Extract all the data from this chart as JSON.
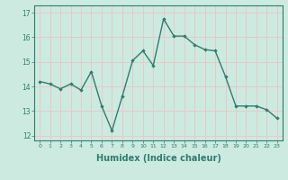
{
  "x": [
    0,
    1,
    2,
    3,
    4,
    5,
    6,
    7,
    8,
    9,
    10,
    11,
    12,
    13,
    14,
    15,
    16,
    17,
    18,
    19,
    20,
    21,
    22,
    23
  ],
  "y": [
    14.2,
    14.1,
    13.9,
    14.1,
    13.85,
    14.6,
    13.2,
    12.2,
    13.6,
    15.05,
    15.45,
    14.85,
    16.75,
    16.05,
    16.05,
    15.7,
    15.5,
    15.45,
    14.4,
    13.2,
    13.2,
    13.2,
    13.05,
    12.7
  ],
  "line_color": "#2e7d6e",
  "marker": "D",
  "marker_size": 1.8,
  "line_width": 1.0,
  "xlabel": "Humidex (Indice chaleur)",
  "xlabel_fontsize": 7,
  "xlim": [
    -0.5,
    23.5
  ],
  "ylim": [
    11.8,
    17.3
  ],
  "yticks": [
    12,
    13,
    14,
    15,
    16,
    17
  ],
  "ytick_labels": [
    "12",
    "13",
    "14",
    "15",
    "16",
    "17"
  ],
  "xticks": [
    0,
    1,
    2,
    3,
    4,
    5,
    6,
    7,
    8,
    9,
    10,
    11,
    12,
    13,
    14,
    15,
    16,
    17,
    18,
    19,
    20,
    21,
    22,
    23
  ],
  "background_color": "#cceae0",
  "grid_color": "#e8c8c8",
  "tick_color": "#2e7d6e",
  "axis_color": "#2e7d6e"
}
